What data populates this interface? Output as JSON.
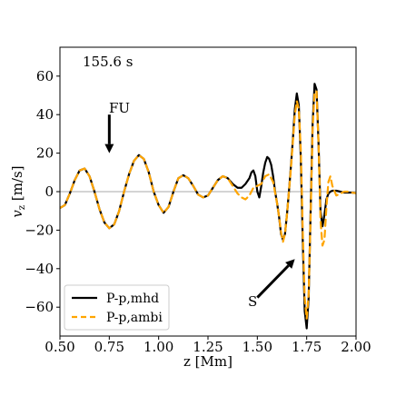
{
  "chart_data": {
    "type": "line",
    "annotation_time": "155.6 s",
    "xlabel": "z [Mm]",
    "ylabel_main": "v",
    "ylabel_sub": "z",
    "ylabel_unit": " [m/s]",
    "xlim": [
      0.5,
      2.0
    ],
    "ylim": [
      -75,
      75
    ],
    "xticks": [
      0.5,
      0.75,
      1.0,
      1.25,
      1.5,
      1.75,
      2.0
    ],
    "xtick_labels": [
      "0.50",
      "0.75",
      "1.00",
      "1.25",
      "1.50",
      "1.75",
      "2.00"
    ],
    "yticks": [
      -60,
      -40,
      -20,
      0,
      20,
      40,
      60
    ],
    "ytick_labels": [
      "−60",
      "−40",
      "−20",
      "0",
      "20",
      "40",
      "60"
    ],
    "zero_line": true,
    "grid": false,
    "legend_position": "lower-left",
    "colors": {
      "mhd": "#000000",
      "ambi": "#ffa500",
      "zero": "#bbbbbb"
    },
    "annotations": [
      {
        "text": "FU",
        "arrow_from": [
          0.75,
          40
        ],
        "arrow_to": [
          0.75,
          20
        ]
      },
      {
        "text": "S",
        "arrow_from": [
          1.5,
          -55
        ],
        "arrow_to": [
          1.69,
          -35
        ]
      }
    ],
    "series": [
      {
        "name": "P-p,mhd",
        "style": "solid",
        "x": [
          0.5,
          0.525,
          0.55,
          0.575,
          0.6,
          0.625,
          0.65,
          0.675,
          0.7,
          0.725,
          0.75,
          0.775,
          0.8,
          0.825,
          0.85,
          0.875,
          0.9,
          0.925,
          0.95,
          0.975,
          1.0,
          1.025,
          1.05,
          1.075,
          1.1,
          1.125,
          1.15,
          1.175,
          1.2,
          1.225,
          1.25,
          1.275,
          1.3,
          1.325,
          1.35,
          1.375,
          1.4,
          1.42,
          1.44,
          1.46,
          1.47,
          1.48,
          1.49,
          1.5,
          1.51,
          1.52,
          1.53,
          1.54,
          1.55,
          1.56,
          1.57,
          1.58,
          1.59,
          1.6,
          1.61,
          1.62,
          1.63,
          1.64,
          1.65,
          1.66,
          1.67,
          1.68,
          1.69,
          1.7,
          1.71,
          1.72,
          1.73,
          1.74,
          1.75,
          1.76,
          1.77,
          1.78,
          1.79,
          1.8,
          1.81,
          1.82,
          1.83,
          1.84,
          1.85,
          1.86,
          1.87,
          1.88,
          1.9,
          1.92,
          1.94,
          1.96,
          1.98,
          2.0
        ],
        "y": [
          -8.5,
          -7,
          -1,
          6,
          11,
          12,
          8,
          0,
          -9,
          -16,
          -19,
          -17,
          -10,
          0,
          9,
          16,
          19,
          17,
          10,
          0,
          -7,
          -11,
          -8,
          0,
          7,
          8.5,
          7,
          3,
          -1.5,
          -3,
          -2,
          2,
          6,
          8,
          7,
          4,
          2,
          2,
          4,
          7,
          10,
          11,
          8,
          0,
          -3,
          3,
          10,
          15,
          18,
          17,
          14,
          8,
          0,
          -6,
          -13,
          -22,
          -25,
          -22,
          -12,
          0,
          13,
          27,
          43,
          51,
          45,
          18,
          -25,
          -62,
          -71,
          -55,
          -10,
          35,
          56,
          53,
          25,
          -10,
          -18,
          -12,
          -4,
          -1,
          0,
          0.5,
          0.5,
          0,
          -0.5,
          -0.5,
          -0.5,
          -0.8
        ]
      },
      {
        "name": "P-p,ambi",
        "style": "dashed",
        "x": [
          0.5,
          0.525,
          0.55,
          0.575,
          0.6,
          0.625,
          0.65,
          0.675,
          0.7,
          0.725,
          0.75,
          0.775,
          0.8,
          0.825,
          0.85,
          0.875,
          0.9,
          0.925,
          0.95,
          0.975,
          1.0,
          1.025,
          1.05,
          1.075,
          1.1,
          1.125,
          1.15,
          1.175,
          1.2,
          1.225,
          1.25,
          1.275,
          1.3,
          1.325,
          1.35,
          1.375,
          1.4,
          1.42,
          1.44,
          1.46,
          1.48,
          1.5,
          1.52,
          1.54,
          1.56,
          1.58,
          1.6,
          1.61,
          1.62,
          1.63,
          1.64,
          1.65,
          1.66,
          1.67,
          1.68,
          1.69,
          1.7,
          1.71,
          1.72,
          1.73,
          1.74,
          1.75,
          1.76,
          1.77,
          1.78,
          1.79,
          1.8,
          1.81,
          1.82,
          1.83,
          1.84,
          1.85,
          1.86,
          1.87,
          1.88,
          1.9,
          1.92,
          1.94,
          1.96,
          1.98,
          2.0
        ],
        "y": [
          -8.5,
          -7,
          -1,
          6,
          11,
          12,
          8,
          0,
          -9,
          -16,
          -19,
          -17,
          -10,
          0,
          9,
          16,
          19,
          17,
          10,
          0,
          -7,
          -11,
          -8,
          0,
          7,
          8.5,
          7,
          3,
          -1.5,
          -3,
          -2,
          2,
          6,
          8,
          7,
          3,
          -1,
          -3,
          -4,
          -2,
          2,
          3,
          4,
          8,
          9,
          5,
          -6,
          -13,
          -21,
          -26,
          -22,
          -12,
          0,
          12,
          26,
          40,
          47,
          43,
          22,
          -20,
          -55,
          -66,
          -53,
          -12,
          32,
          52,
          52,
          25,
          -15,
          -28,
          -25,
          -8,
          5,
          8,
          3,
          -2,
          -1,
          0,
          0,
          -0.5,
          -0.8
        ]
      }
    ]
  }
}
